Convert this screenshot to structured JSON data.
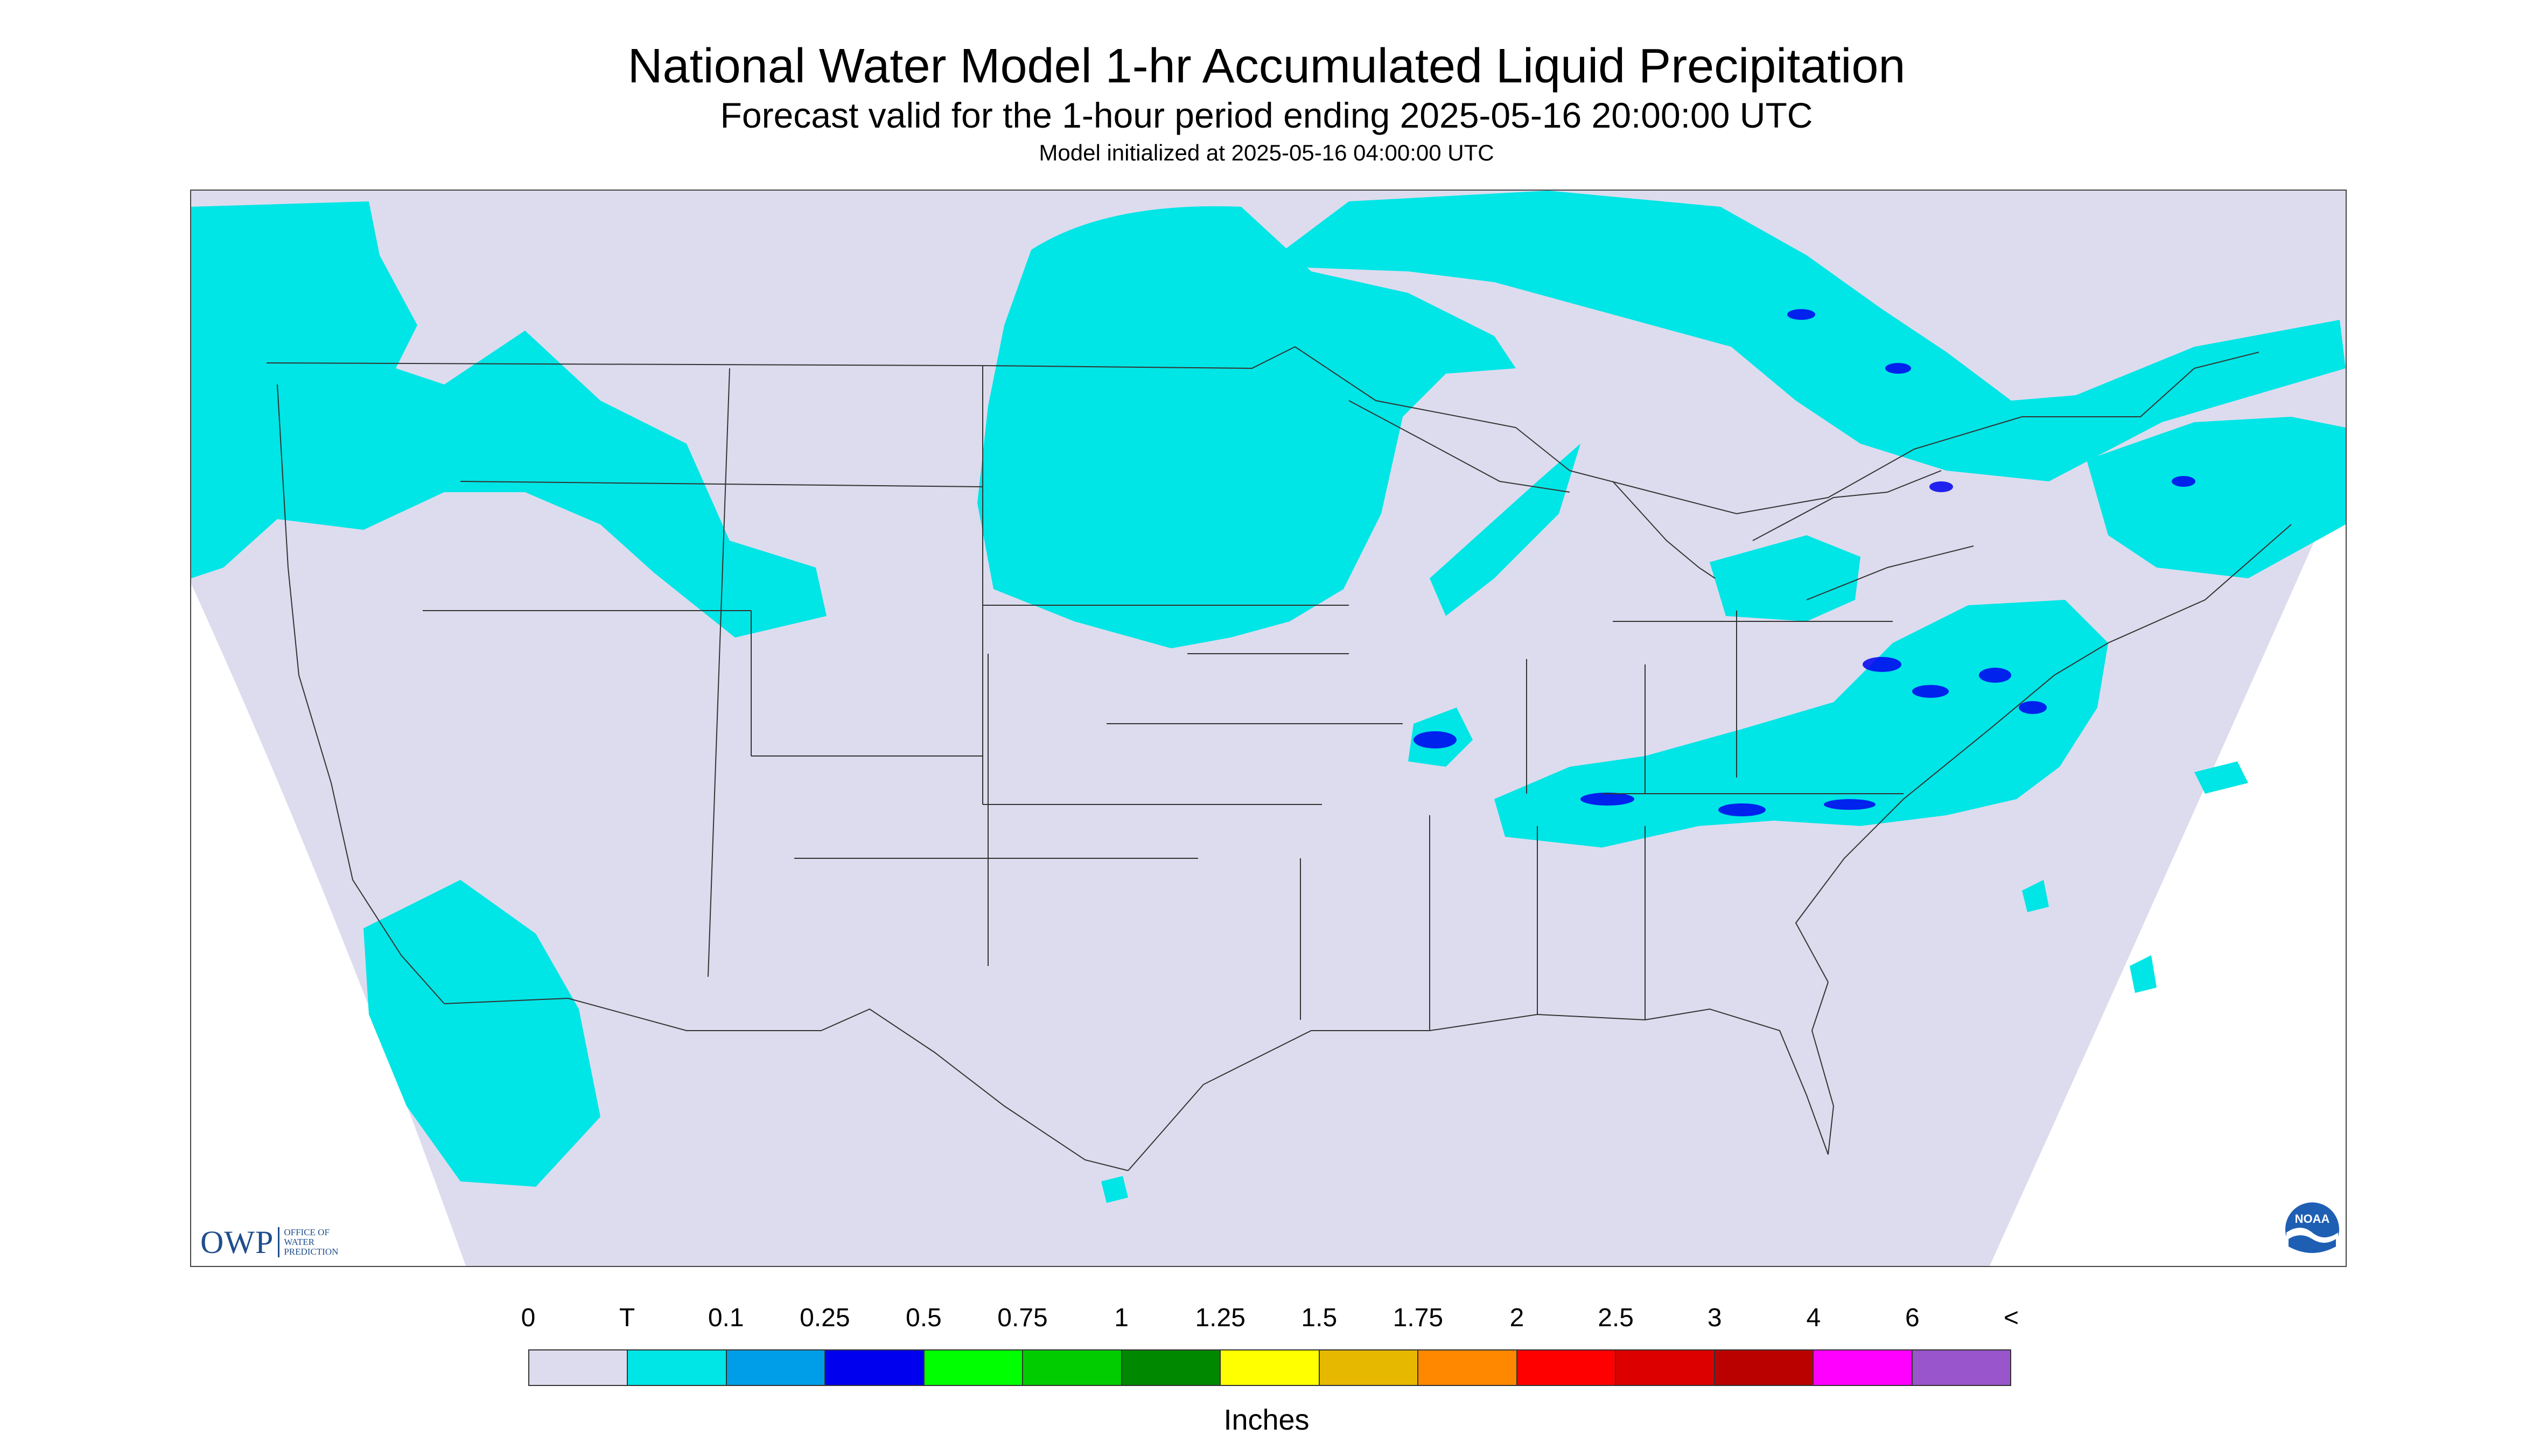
{
  "title": "National Water Model 1-hr Accumulated Liquid Precipitation",
  "subtitle": "Forecast valid for the 1-hour period ending 2025-05-16 20:00:00 UTC",
  "init_text": "Model initialized at 2025-05-16 04:00:00 UTC",
  "colors": {
    "no_data": "#ffffff",
    "domain_bg": "#dcdcee",
    "boundary": "#333333",
    "precip_trace": "#00e5e5",
    "precip_light": "#009ee8",
    "precip_moderate": "#0000ee"
  },
  "owp_logo": {
    "letters": "OWP",
    "lines": [
      "OFFICE OF",
      "WATER",
      "PREDICTION"
    ]
  },
  "noaa_logo": {
    "letters": "NOAA",
    "icon": "noaa-seal-icon"
  },
  "legend": {
    "label": "Inches",
    "ticks": [
      "0",
      "T",
      "0.1",
      "0.25",
      "0.5",
      "0.75",
      "1",
      "1.25",
      "1.5",
      "1.75",
      "2",
      "2.5",
      "3",
      "4",
      "6",
      "<"
    ],
    "colors": [
      "#dcdcee",
      "#00e5e5",
      "#009ee8",
      "#0000ee",
      "#00ff00",
      "#00cc00",
      "#008800",
      "#ffff00",
      "#e6b800",
      "#ff8800",
      "#ff0000",
      "#dd0000",
      "#bb0000",
      "#ff00ff",
      "#9955cc"
    ]
  }
}
